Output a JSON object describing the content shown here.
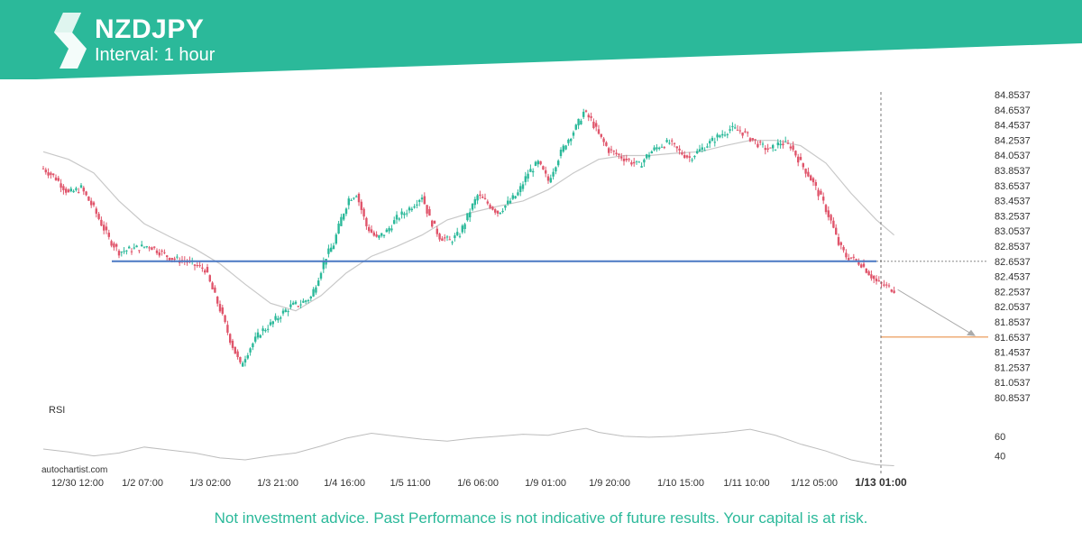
{
  "header": {
    "symbol": "NZDJPY",
    "interval": "Interval: 1 hour",
    "brand_color": "#2bb99a"
  },
  "watermark": "autochartist.com",
  "rsi_label": "RSI",
  "disclaimer": "Not investment advice. Past Performance is not indicative of future results. Your capital is at risk.",
  "chart_data": {
    "type": "candlestick",
    "instrument": "NZDJPY",
    "timeframe": "1 hour",
    "y_ticks": [
      "84.8537",
      "84.6537",
      "84.4537",
      "84.2537",
      "84.0537",
      "83.8537",
      "83.6537",
      "83.4537",
      "83.2537",
      "83.0537",
      "82.8537",
      "82.6537",
      "82.4537",
      "82.2537",
      "82.0537",
      "81.8537",
      "81.6537",
      "81.4537",
      "81.2537",
      "81.0537",
      "80.8537"
    ],
    "ylim": [
      80.8537,
      84.8537
    ],
    "x_ticks": [
      "12/30 12:00",
      "1/2 07:00",
      "1/3 02:00",
      "1/3 21:00",
      "1/4 16:00",
      "1/5 11:00",
      "1/6 06:00",
      "1/9 01:00",
      "1/9 20:00",
      "1/10 15:00",
      "1/11 10:00",
      "1/12 05:00",
      "1/13 01:00"
    ],
    "highlight_tick": "1/13 01:00",
    "close_path": [
      [
        0,
        83.88
      ],
      [
        5,
        83.75
      ],
      [
        10,
        83.55
      ],
      [
        15,
        83.62
      ],
      [
        20,
        83.35
      ],
      [
        26,
        82.95
      ],
      [
        30,
        82.78
      ],
      [
        36,
        82.82
      ],
      [
        42,
        82.86
      ],
      [
        48,
        82.74
      ],
      [
        52,
        82.68
      ],
      [
        56,
        82.66
      ],
      [
        60,
        82.6
      ],
      [
        64,
        82.55
      ],
      [
        67,
        82.28
      ],
      [
        70,
        82.02
      ],
      [
        74,
        81.62
      ],
      [
        78,
        81.28
      ],
      [
        82,
        81.52
      ],
      [
        86,
        81.72
      ],
      [
        90,
        81.82
      ],
      [
        94,
        81.95
      ],
      [
        98,
        82.06
      ],
      [
        102,
        82.1
      ],
      [
        106,
        82.18
      ],
      [
        109,
        82.45
      ],
      [
        112,
        82.72
      ],
      [
        115,
        82.88
      ],
      [
        118,
        83.22
      ],
      [
        121,
        83.48
      ],
      [
        124,
        83.55
      ],
      [
        128,
        83.12
      ],
      [
        132,
        82.95
      ],
      [
        136,
        83.05
      ],
      [
        140,
        83.22
      ],
      [
        144,
        83.32
      ],
      [
        147,
        83.42
      ],
      [
        150,
        83.52
      ],
      [
        153,
        83.22
      ],
      [
        157,
        82.98
      ],
      [
        161,
        82.92
      ],
      [
        165,
        83.02
      ],
      [
        169,
        83.32
      ],
      [
        172,
        83.52
      ],
      [
        176,
        83.42
      ],
      [
        180,
        83.3
      ],
      [
        184,
        83.42
      ],
      [
        188,
        83.55
      ],
      [
        192,
        83.82
      ],
      [
        196,
        83.95
      ],
      [
        200,
        83.72
      ],
      [
        204,
        84.02
      ],
      [
        207,
        84.22
      ],
      [
        211,
        84.42
      ],
      [
        214,
        84.62
      ],
      [
        217,
        84.52
      ],
      [
        220,
        84.32
      ],
      [
        224,
        84.12
      ],
      [
        228,
        84.05
      ],
      [
        232,
        83.98
      ],
      [
        236,
        83.92
      ],
      [
        240,
        84.08
      ],
      [
        244,
        84.18
      ],
      [
        248,
        84.22
      ],
      [
        252,
        84.1
      ],
      [
        256,
        84.02
      ],
      [
        260,
        84.12
      ],
      [
        264,
        84.22
      ],
      [
        268,
        84.32
      ],
      [
        272,
        84.4
      ],
      [
        276,
        84.38
      ],
      [
        280,
        84.28
      ],
      [
        284,
        84.18
      ],
      [
        288,
        84.12
      ],
      [
        292,
        84.22
      ],
      [
        296,
        84.18
      ],
      [
        300,
        83.95
      ],
      [
        303,
        83.8
      ],
      [
        306,
        83.62
      ],
      [
        309,
        83.42
      ],
      [
        312,
        83.18
      ],
      [
        315,
        82.88
      ],
      [
        318,
        82.72
      ],
      [
        321,
        82.68
      ],
      [
        324,
        82.62
      ],
      [
        327,
        82.5
      ],
      [
        330,
        82.38
      ],
      [
        334,
        82.32
      ],
      [
        337,
        82.28
      ]
    ],
    "moving_average": [
      [
        0,
        84.1
      ],
      [
        10,
        84.0
      ],
      [
        20,
        83.82
      ],
      [
        30,
        83.45
      ],
      [
        40,
        83.15
      ],
      [
        50,
        82.98
      ],
      [
        60,
        82.82
      ],
      [
        70,
        82.62
      ],
      [
        80,
        82.35
      ],
      [
        90,
        82.1
      ],
      [
        100,
        82.0
      ],
      [
        110,
        82.2
      ],
      [
        120,
        82.5
      ],
      [
        130,
        82.72
      ],
      [
        140,
        82.85
      ],
      [
        150,
        83.0
      ],
      [
        160,
        83.2
      ],
      [
        170,
        83.3
      ],
      [
        180,
        83.38
      ],
      [
        190,
        83.45
      ],
      [
        200,
        83.6
      ],
      [
        210,
        83.82
      ],
      [
        220,
        84.0
      ],
      [
        230,
        84.05
      ],
      [
        240,
        84.05
      ],
      [
        250,
        84.08
      ],
      [
        260,
        84.1
      ],
      [
        270,
        84.18
      ],
      [
        280,
        84.25
      ],
      [
        290,
        84.25
      ],
      [
        300,
        84.18
      ],
      [
        310,
        83.95
      ],
      [
        320,
        83.55
      ],
      [
        330,
        83.2
      ],
      [
        337,
        83.0
      ]
    ],
    "support_level": 82.6537,
    "target_level": 81.6537,
    "rsi": {
      "ticks": [
        60,
        40
      ],
      "ylim": [
        25,
        80
      ],
      "values": [
        [
          0,
          47
        ],
        [
          10,
          44
        ],
        [
          20,
          40
        ],
        [
          30,
          43
        ],
        [
          40,
          49
        ],
        [
          50,
          46
        ],
        [
          60,
          43
        ],
        [
          70,
          38
        ],
        [
          80,
          36
        ],
        [
          90,
          40
        ],
        [
          100,
          43
        ],
        [
          110,
          50
        ],
        [
          120,
          58
        ],
        [
          130,
          63
        ],
        [
          140,
          60
        ],
        [
          150,
          57
        ],
        [
          160,
          55
        ],
        [
          170,
          58
        ],
        [
          180,
          60
        ],
        [
          190,
          62
        ],
        [
          200,
          61
        ],
        [
          210,
          66
        ],
        [
          215,
          68
        ],
        [
          220,
          64
        ],
        [
          230,
          60
        ],
        [
          240,
          59
        ],
        [
          250,
          60
        ],
        [
          260,
          62
        ],
        [
          270,
          64
        ],
        [
          280,
          67
        ],
        [
          290,
          61
        ],
        [
          300,
          52
        ],
        [
          310,
          45
        ],
        [
          320,
          36
        ],
        [
          330,
          31
        ],
        [
          337,
          30
        ]
      ]
    }
  }
}
